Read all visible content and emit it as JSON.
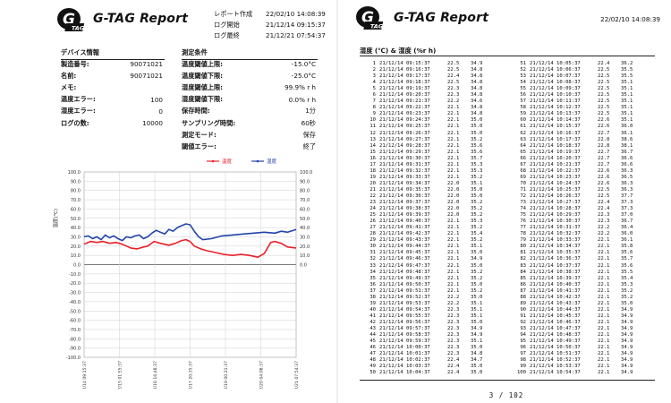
{
  "left_page": {
    "brand": "G-TAG Report",
    "logo": {
      "letter": "G",
      "sub": "TAG"
    },
    "header_meta": [
      {
        "label": "レポート作成",
        "value": "22/02/10 14:08:39"
      },
      {
        "label": "ログ開始",
        "value": "21/12/14 09:15:37"
      },
      {
        "label": "ログ最終",
        "value": "21/12/21 07:54:37"
      }
    ],
    "device_info": {
      "title": "デバイス情報",
      "rows": [
        {
          "label": "製造番号:",
          "value": "90071021"
        },
        {
          "label": "名前:",
          "value": "90071021"
        },
        {
          "label": "メモ:",
          "value": ""
        },
        {
          "label": "温度エラー:",
          "value": "100"
        },
        {
          "label": "湿度エラー:",
          "value": "0"
        },
        {
          "label": "ログの数:",
          "value": "10000"
        }
      ]
    },
    "conditions": {
      "title": "測定条件",
      "rows": [
        {
          "label": "温度閾値上限:",
          "value": "-15.0°C"
        },
        {
          "label": "温度閾値下限:",
          "value": "-25.0°C"
        },
        {
          "label": "湿度閾値上限:",
          "value": "99.9% r h"
        },
        {
          "label": "湿度閾値下限:",
          "value": "0.0% r h"
        },
        {
          "label": "保存時間:",
          "value": "1分"
        },
        {
          "label": "サンプリング時間:",
          "value": "60秒"
        },
        {
          "label": "測定モード:",
          "value": "保存"
        },
        {
          "label": "閾値エラー:",
          "value": "終了"
        }
      ]
    }
  },
  "chart_data": {
    "type": "line",
    "xlabel": "",
    "ylabel": "温度(℃)",
    "y2label": "湿度(%r h)",
    "ylim": [
      -100,
      100
    ],
    "y2lim": [
      0,
      100
    ],
    "yticks": [
      "100.0",
      "90.0",
      "80.0",
      "70.0",
      "60.0",
      "50.0",
      "40.0",
      "30.0",
      "20.0",
      "10.0",
      "0.0",
      "-10.0",
      "-20.0",
      "-30.0",
      "-40.0",
      "-50.0",
      "-60.0",
      "-70.0",
      "-80.0",
      "-90.0",
      "-100.0"
    ],
    "y2ticks": [
      "100.0",
      "90.0",
      "80.0",
      "70.0",
      "60.0",
      "50.0",
      "40.0",
      "30.0",
      "20.0",
      "10.0",
      "0.0"
    ],
    "x_ticks": [
      "21/12/14 09:15:37",
      "21/12/15 01:55:37",
      "21/12/16 16:48:37",
      "21/12/17 20:35:37",
      "21/12/19 00:21:37",
      "21/12/20 04:08:37",
      "21/12/21 07:54:37"
    ],
    "legend": [
      "温度",
      "湿度"
    ],
    "legend_position": "top-right",
    "grid": true,
    "series": [
      {
        "name": "温度",
        "color": "#e8202a",
        "axis": "left",
        "x": [
          0,
          0.03,
          0.06,
          0.09,
          0.12,
          0.15,
          0.18,
          0.2,
          0.22,
          0.25,
          0.28,
          0.3,
          0.33,
          0.36,
          0.4,
          0.43,
          0.46,
          0.48,
          0.5,
          0.52,
          0.55,
          0.58,
          0.62,
          0.66,
          0.7,
          0.74,
          0.78,
          0.8,
          0.82,
          0.85,
          0.88,
          0.9,
          0.93,
          0.96,
          1.0
        ],
        "values": [
          22,
          25,
          24,
          25,
          23,
          24,
          22,
          20,
          18,
          17,
          19,
          20,
          25,
          23,
          21,
          23,
          26,
          27,
          25,
          20,
          17,
          15,
          13,
          11,
          10,
          11,
          10,
          9,
          8,
          12,
          24,
          25,
          23,
          19,
          18
        ]
      },
      {
        "name": "湿度",
        "color": "#2244aa",
        "axis": "right",
        "x": [
          0,
          0.02,
          0.04,
          0.06,
          0.08,
          0.1,
          0.12,
          0.14,
          0.16,
          0.18,
          0.2,
          0.22,
          0.24,
          0.26,
          0.28,
          0.3,
          0.32,
          0.34,
          0.36,
          0.38,
          0.4,
          0.42,
          0.44,
          0.46,
          0.48,
          0.5,
          0.52,
          0.54,
          0.56,
          0.6,
          0.65,
          0.7,
          0.75,
          0.8,
          0.85,
          0.9,
          0.93,
          0.96,
          1.0
        ],
        "values": [
          30,
          31,
          28,
          30,
          27,
          32,
          29,
          31,
          28,
          26,
          30,
          29,
          31,
          32,
          28,
          30,
          34,
          37,
          35,
          33,
          38,
          36,
          40,
          42,
          44,
          43,
          36,
          30,
          27,
          28,
          31,
          32,
          33,
          34,
          35,
          34,
          36,
          35,
          38
        ]
      }
    ]
  },
  "right_page": {
    "brand": "G-TAG Report",
    "logo": {
      "letter": "G",
      "sub": "TAG"
    },
    "timestamp": "22/02/10 14:08:39",
    "table_title": "湿度 (℃) & 湿度 (%r h)",
    "page_indicator": "3  /  102",
    "rows_left": [
      {
        "no": "1",
        "datetime": "21/12/14 09:15:37",
        "temp": "22.5",
        "hum": "34.9"
      },
      {
        "no": "2",
        "datetime": "21/12/14 09:16:37",
        "temp": "22.5",
        "hum": "34.8"
      },
      {
        "no": "3",
        "datetime": "21/12/14 09:17:37",
        "temp": "22.4",
        "hum": "34.8"
      },
      {
        "no": "4",
        "datetime": "21/12/14 09:18:37",
        "temp": "22.5",
        "hum": "34.8"
      },
      {
        "no": "5",
        "datetime": "21/12/14 09:19:37",
        "temp": "22.3",
        "hum": "34.8"
      },
      {
        "no": "6",
        "datetime": "21/12/14 09:20:37",
        "temp": "22.3",
        "hum": "34.8"
      },
      {
        "no": "7",
        "datetime": "21/12/14 09:21:37",
        "temp": "22.2",
        "hum": "34.6"
      },
      {
        "no": "8",
        "datetime": "21/12/14 09:22:37",
        "temp": "22.1",
        "hum": "34.8"
      },
      {
        "no": "9",
        "datetime": "21/12/14 09:23:37",
        "temp": "22.1",
        "hum": "34.8"
      },
      {
        "no": "10",
        "datetime": "21/12/14 09:24:37",
        "temp": "22.1",
        "hum": "35.0"
      },
      {
        "no": "11",
        "datetime": "21/12/14 09:25:37",
        "temp": "22.1",
        "hum": "35.0"
      },
      {
        "no": "12",
        "datetime": "21/12/14 09:26:37",
        "temp": "22.1",
        "hum": "35.0"
      },
      {
        "no": "13",
        "datetime": "21/12/14 09:27:37",
        "temp": "22.1",
        "hum": "35.2"
      },
      {
        "no": "14",
        "datetime": "21/12/14 09:28:37",
        "temp": "22.1",
        "hum": "35.6"
      },
      {
        "no": "15",
        "datetime": "21/12/14 09:29:37",
        "temp": "22.1",
        "hum": "35.6"
      },
      {
        "no": "16",
        "datetime": "21/12/14 09:30:37",
        "temp": "22.1",
        "hum": "35.7"
      },
      {
        "no": "17",
        "datetime": "21/12/14 09:31:37",
        "temp": "22.1",
        "hum": "35.3"
      },
      {
        "no": "18",
        "datetime": "21/12/14 09:32:37",
        "temp": "22.1",
        "hum": "35.3"
      },
      {
        "no": "19",
        "datetime": "21/12/14 09:33:37",
        "temp": "22.1",
        "hum": "35.2"
      },
      {
        "no": "20",
        "datetime": "21/12/14 09:34:37",
        "temp": "22.0",
        "hum": "35.1"
      },
      {
        "no": "21",
        "datetime": "21/12/14 09:35:37",
        "temp": "22.0",
        "hum": "35.0"
      },
      {
        "no": "22",
        "datetime": "21/12/14 09:36:37",
        "temp": "22.0",
        "hum": "35.0"
      },
      {
        "no": "23",
        "datetime": "21/12/14 09:37:37",
        "temp": "22.0",
        "hum": "35.2"
      },
      {
        "no": "24",
        "datetime": "21/12/14 09:38:37",
        "temp": "22.0",
        "hum": "35.2"
      },
      {
        "no": "25",
        "datetime": "21/12/14 09:39:37",
        "temp": "22.0",
        "hum": "35.2"
      },
      {
        "no": "26",
        "datetime": "21/12/14 09:40:37",
        "temp": "22.1",
        "hum": "35.3"
      },
      {
        "no": "27",
        "datetime": "21/12/14 09:41:37",
        "temp": "22.1",
        "hum": "35.2"
      },
      {
        "no": "28",
        "datetime": "21/12/14 09:42:37",
        "temp": "22.1",
        "hum": "35.4"
      },
      {
        "no": "29",
        "datetime": "21/12/14 09:43:37",
        "temp": "22.1",
        "hum": "35.2"
      },
      {
        "no": "30",
        "datetime": "21/12/14 09:44:37",
        "temp": "22.1",
        "hum": "35.1"
      },
      {
        "no": "31",
        "datetime": "21/12/14 09:45:37",
        "temp": "22.1",
        "hum": "35.0"
      },
      {
        "no": "32",
        "datetime": "21/12/14 09:46:37",
        "temp": "22.1",
        "hum": "34.9"
      },
      {
        "no": "33",
        "datetime": "21/12/14 09:47:37",
        "temp": "22.1",
        "hum": "35.0"
      },
      {
        "no": "34",
        "datetime": "21/12/14 09:48:37",
        "temp": "22.1",
        "hum": "35.2"
      },
      {
        "no": "35",
        "datetime": "21/12/14 09:49:37",
        "temp": "22.1",
        "hum": "35.2"
      },
      {
        "no": "36",
        "datetime": "21/12/14 09:50:37",
        "temp": "22.1",
        "hum": "35.0"
      },
      {
        "no": "37",
        "datetime": "21/12/14 09:51:37",
        "temp": "22.1",
        "hum": "35.2"
      },
      {
        "no": "38",
        "datetime": "21/12/14 09:52:37",
        "temp": "22.2",
        "hum": "35.0"
      },
      {
        "no": "39",
        "datetime": "21/12/14 09:53:37",
        "temp": "22.2",
        "hum": "35.1"
      },
      {
        "no": "40",
        "datetime": "21/12/14 09:54:37",
        "temp": "22.3",
        "hum": "35.1"
      },
      {
        "no": "41",
        "datetime": "21/12/14 09:55:37",
        "temp": "22.3",
        "hum": "35.1"
      },
      {
        "no": "42",
        "datetime": "21/12/14 09:56:37",
        "temp": "22.3",
        "hum": "35.0"
      },
      {
        "no": "43",
        "datetime": "21/12/14 09:57:37",
        "temp": "22.3",
        "hum": "34.9"
      },
      {
        "no": "44",
        "datetime": "21/12/14 09:58:37",
        "temp": "22.3",
        "hum": "34.9"
      },
      {
        "no": "45",
        "datetime": "21/12/14 09:59:37",
        "temp": "22.3",
        "hum": "35.1"
      },
      {
        "no": "46",
        "datetime": "21/12/14 10:00:37",
        "temp": "22.3",
        "hum": "35.0"
      },
      {
        "no": "47",
        "datetime": "21/12/14 10:01:37",
        "temp": "22.3",
        "hum": "34.8"
      },
      {
        "no": "48",
        "datetime": "21/12/14 10:02:37",
        "temp": "22.4",
        "hum": "34.7"
      },
      {
        "no": "49",
        "datetime": "21/12/14 10:03:37",
        "temp": "22.4",
        "hum": "35.0"
      },
      {
        "no": "50",
        "datetime": "21/12/14 10:04:37",
        "temp": "22.4",
        "hum": "35.0"
      }
    ],
    "rows_right": [
      {
        "no": "51",
        "datetime": "21/12/14 10:05:37",
        "temp": "22.4",
        "hum": "36.2"
      },
      {
        "no": "52",
        "datetime": "21/12/14 10:06:37",
        "temp": "22.5",
        "hum": "35.5"
      },
      {
        "no": "53",
        "datetime": "21/12/14 10:07:37",
        "temp": "22.5",
        "hum": "35.5"
      },
      {
        "no": "54",
        "datetime": "21/12/14 10:08:37",
        "temp": "22.5",
        "hum": "35.1"
      },
      {
        "no": "55",
        "datetime": "21/12/14 10:09:37",
        "temp": "22.5",
        "hum": "35.1"
      },
      {
        "no": "56",
        "datetime": "21/12/14 10:10:37",
        "temp": "22.5",
        "hum": "35.1"
      },
      {
        "no": "57",
        "datetime": "21/12/14 10:11:37",
        "temp": "22.5",
        "hum": "35.1"
      },
      {
        "no": "58",
        "datetime": "21/12/14 10:12:37",
        "temp": "22.5",
        "hum": "35.1"
      },
      {
        "no": "59",
        "datetime": "21/12/14 10:13:37",
        "temp": "22.5",
        "hum": "35.1"
      },
      {
        "no": "60",
        "datetime": "21/12/14 10:14:37",
        "temp": "22.6",
        "hum": "35.1"
      },
      {
        "no": "61",
        "datetime": "21/12/14 10:15:37",
        "temp": "22.6",
        "hum": "36.0"
      },
      {
        "no": "62",
        "datetime": "21/12/14 10:16:37",
        "temp": "22.7",
        "hum": "36.1"
      },
      {
        "no": "63",
        "datetime": "21/12/14 10:17:37",
        "temp": "22.8",
        "hum": "38.6"
      },
      {
        "no": "64",
        "datetime": "21/12/14 10:18:37",
        "temp": "22.8",
        "hum": "38.1"
      },
      {
        "no": "65",
        "datetime": "21/12/14 10:19:37",
        "temp": "22.7",
        "hum": "36.7"
      },
      {
        "no": "66",
        "datetime": "21/12/14 10:20:37",
        "temp": "22.7",
        "hum": "36.6"
      },
      {
        "no": "67",
        "datetime": "21/12/14 10:21:37",
        "temp": "22.7",
        "hum": "36.6"
      },
      {
        "no": "68",
        "datetime": "21/12/14 10:22:37",
        "temp": "22.6",
        "hum": "36.3"
      },
      {
        "no": "69",
        "datetime": "21/12/14 10:23:37",
        "temp": "22.6",
        "hum": "36.5"
      },
      {
        "no": "70",
        "datetime": "21/12/14 10:24:37",
        "temp": "22.6",
        "hum": "36.3"
      },
      {
        "no": "71",
        "datetime": "21/12/14 10:25:37",
        "temp": "22.5",
        "hum": "36.3"
      },
      {
        "no": "72",
        "datetime": "21/12/14 10:26:37",
        "temp": "22.5",
        "hum": "37.7"
      },
      {
        "no": "73",
        "datetime": "21/12/14 10:27:37",
        "temp": "22.4",
        "hum": "37.3"
      },
      {
        "no": "74",
        "datetime": "21/12/14 10:28:37",
        "temp": "22.4",
        "hum": "37.3"
      },
      {
        "no": "75",
        "datetime": "21/12/14 10:29:37",
        "temp": "22.3",
        "hum": "37.0"
      },
      {
        "no": "76",
        "datetime": "21/12/14 10:30:37",
        "temp": "22.3",
        "hum": "36.7"
      },
      {
        "no": "77",
        "datetime": "21/12/14 10:31:37",
        "temp": "22.2",
        "hum": "36.4"
      },
      {
        "no": "78",
        "datetime": "21/12/14 10:32:37",
        "temp": "22.2",
        "hum": "36.0"
      },
      {
        "no": "79",
        "datetime": "21/12/14 10:33:37",
        "temp": "22.1",
        "hum": "36.1"
      },
      {
        "no": "80",
        "datetime": "21/12/14 10:34:37",
        "temp": "22.1",
        "hum": "35.8"
      },
      {
        "no": "81",
        "datetime": "21/12/14 10:35:37",
        "temp": "22.1",
        "hum": "35.6"
      },
      {
        "no": "82",
        "datetime": "21/12/14 10:36:37",
        "temp": "22.1",
        "hum": "35.7"
      },
      {
        "no": "83",
        "datetime": "21/12/14 10:37:37",
        "temp": "22.1",
        "hum": "35.6"
      },
      {
        "no": "84",
        "datetime": "21/12/14 10:38:37",
        "temp": "22.1",
        "hum": "35.5"
      },
      {
        "no": "85",
        "datetime": "21/12/14 10:39:37",
        "temp": "22.1",
        "hum": "35.4"
      },
      {
        "no": "86",
        "datetime": "21/12/14 10:40:37",
        "temp": "22.1",
        "hum": "35.3"
      },
      {
        "no": "87",
        "datetime": "21/12/14 10:41:37",
        "temp": "22.1",
        "hum": "35.2"
      },
      {
        "no": "88",
        "datetime": "21/12/14 10:42:37",
        "temp": "22.1",
        "hum": "35.2"
      },
      {
        "no": "89",
        "datetime": "21/12/14 10:43:37",
        "temp": "22.1",
        "hum": "35.0"
      },
      {
        "no": "90",
        "datetime": "21/12/14 10:44:37",
        "temp": "22.1",
        "hum": "34.9"
      },
      {
        "no": "91",
        "datetime": "21/12/14 10:45:37",
        "temp": "22.1",
        "hum": "34.9"
      },
      {
        "no": "92",
        "datetime": "21/12/14 10:46:37",
        "temp": "22.1",
        "hum": "34.9"
      },
      {
        "no": "93",
        "datetime": "21/12/14 10:47:37",
        "temp": "22.1",
        "hum": "34.9"
      },
      {
        "no": "94",
        "datetime": "21/12/14 10:48:37",
        "temp": "22.1",
        "hum": "34.9"
      },
      {
        "no": "95",
        "datetime": "21/12/14 10:49:37",
        "temp": "22.1",
        "hum": "34.9"
      },
      {
        "no": "96",
        "datetime": "21/12/14 10:50:37",
        "temp": "22.1",
        "hum": "34.9"
      },
      {
        "no": "97",
        "datetime": "21/12/14 10:51:37",
        "temp": "22.1",
        "hum": "34.9"
      },
      {
        "no": "98",
        "datetime": "21/12/14 10:52:37",
        "temp": "22.1",
        "hum": "34.9"
      },
      {
        "no": "99",
        "datetime": "21/12/14 10:53:37",
        "temp": "22.1",
        "hum": "34.9"
      },
      {
        "no": "100",
        "datetime": "21/12/14 10:54:37",
        "temp": "22.1",
        "hum": "34.9"
      }
    ]
  }
}
